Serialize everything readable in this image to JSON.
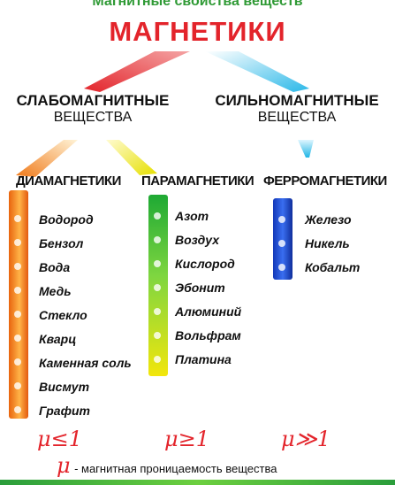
{
  "header": {
    "top_caption": "Магнитные свойства веществ",
    "title": "МАГНЕТИКИ"
  },
  "branches": [
    {
      "title": "СЛАБОМАГНИТНЫЕ",
      "subtitle": "ВЕЩЕСТВА"
    },
    {
      "title": "СИЛЬНОМАГНИТНЫЕ",
      "subtitle": "ВЕЩЕСТВА"
    }
  ],
  "categories": [
    {
      "label": "ДИАМАГНЕТИКИ",
      "color": "#f07a1a",
      "items": [
        "Водород",
        "Бензол",
        "Вода",
        "Медь",
        "Стекло",
        "Кварц",
        "Каменная соль",
        "Висмут",
        "Графит"
      ],
      "condition": "μ≤1"
    },
    {
      "label": "ПАРАМАГНЕТИКИ",
      "color": "#6fcf3f",
      "items": [
        "Азот",
        "Воздух",
        "Кислород",
        "Эбонит",
        "Алюминий",
        "Вольфрам",
        "Платина"
      ],
      "condition": "μ≥1"
    },
    {
      "label": "ФЕРРОМАГНЕТИКИ",
      "color": "#2456d8",
      "items": [
        "Железо",
        "Никель",
        "Кобальт"
      ],
      "condition": "μ≫1"
    }
  ],
  "legend": {
    "symbol": "μ",
    "text": "- магнитная проницаемость вещества"
  },
  "colors": {
    "title_red": "#e3242b",
    "caption_green": "#2f9a35"
  }
}
